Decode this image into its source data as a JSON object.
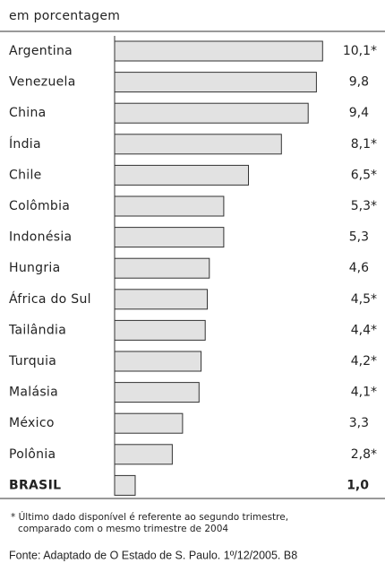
{
  "chart_data": {
    "type": "bar",
    "orientation": "horizontal",
    "subtitle": "em porcentagem",
    "categories": [
      "Argentina",
      "Venezuela",
      "China",
      "Índia",
      "Chile",
      "Colômbia",
      "Indonésia",
      "Hungria",
      "África do Sul",
      "Tailândia",
      "Turquia",
      "Malásia",
      "México",
      "Polônia",
      "BRASIL"
    ],
    "values": [
      10.1,
      9.8,
      9.4,
      8.1,
      6.5,
      5.3,
      5.3,
      4.6,
      4.5,
      4.4,
      4.2,
      4.1,
      3.3,
      2.8,
      1.0
    ],
    "value_labels": [
      "10,1*",
      "9,8",
      "9,4",
      "8,1*",
      "6,5*",
      "5,3*",
      "5,3",
      "4,6",
      "4,5*",
      "4,4*",
      "4,2*",
      "4,1*",
      "3,3",
      "2,8*",
      "1,0"
    ],
    "color": "#e2e2e2",
    "footnote": [
      "* Último dado disponível é referente ao segundo trimestre,",
      "comparado com o mesmo trimestre de 2004"
    ],
    "source": "Fonte: Adaptado de O Estado de S. Paulo. 1º/12/2005. B8"
  }
}
